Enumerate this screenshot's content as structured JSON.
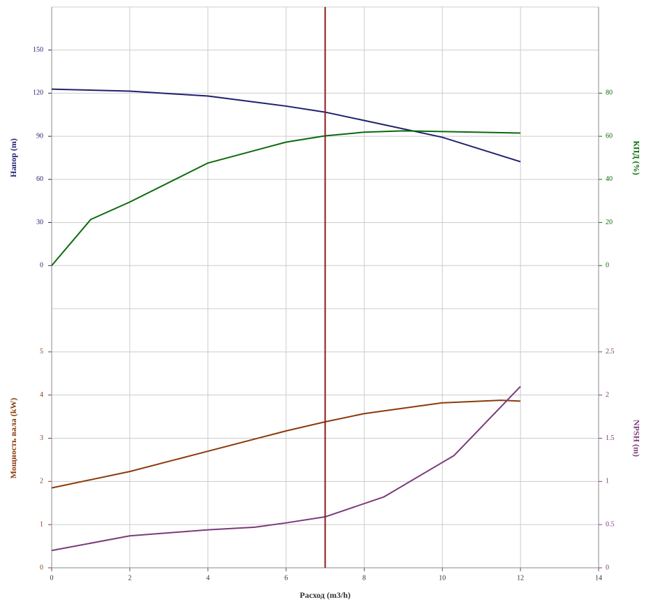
{
  "chart_data": [
    {
      "type": "line",
      "ylabel": "Напор (m)",
      "y2label": "КПД (%)",
      "xlim": [
        0,
        14
      ],
      "xticks": [
        0,
        2,
        4,
        6,
        8,
        10,
        12,
        14
      ],
      "ylim": [
        -30,
        180
      ],
      "yticks": [
        0,
        30,
        60,
        90,
        120,
        150
      ],
      "y2lim": [
        -20,
        120
      ],
      "y2ticks": [
        0,
        20,
        40,
        60,
        80
      ],
      "duty_x": 7,
      "duty_color": "#8b1a1a",
      "grid": true,
      "series": [
        {
          "name": "Напор",
          "color": "#1f1f6e",
          "x": [
            0,
            2,
            4,
            6,
            7,
            8,
            10,
            12
          ],
          "values": [
            122.8,
            121.4,
            118,
            111,
            106.8,
            101,
            89.3,
            72.3
          ]
        },
        {
          "name": "КПД",
          "color": "#0a6a0a",
          "axis": "y2",
          "x": [
            0,
            1,
            2,
            4,
            6,
            7,
            8,
            9,
            10,
            12
          ],
          "values": [
            0,
            21.4,
            29.5,
            47.6,
            57.3,
            60.2,
            61.9,
            62.5,
            62.2,
            61.5
          ]
        }
      ]
    },
    {
      "type": "line",
      "ylabel": "Мощность вала (kW)",
      "y2label": "NPSH (m)",
      "xlabel": "Расход (m3/h)",
      "xlim": [
        0,
        14
      ],
      "xticks": [
        0,
        2,
        4,
        6,
        8,
        10,
        12,
        14
      ],
      "ylim": [
        0,
        6
      ],
      "yticks": [
        0,
        1,
        2,
        3,
        4,
        5
      ],
      "y2lim": [
        0,
        3
      ],
      "y2ticks": [
        0,
        0.5,
        1,
        1.5,
        2,
        2.5
      ],
      "grid": true,
      "series": [
        {
          "name": "Мощность вала",
          "color": "#8b3a0a",
          "x": [
            0,
            2,
            4,
            6,
            7,
            8,
            10,
            11.5,
            12
          ],
          "values": [
            1.85,
            2.23,
            2.7,
            3.17,
            3.38,
            3.57,
            3.82,
            3.88,
            3.86
          ]
        },
        {
          "name": "NPSH",
          "color": "#7a3a7a",
          "axis": "y2",
          "x": [
            0,
            2,
            4,
            5.2,
            6,
            7,
            8.5,
            10.3,
            12
          ],
          "values": [
            0.2,
            0.37,
            0.44,
            0.47,
            0.52,
            0.59,
            0.82,
            1.3,
            2.1
          ]
        }
      ]
    }
  ]
}
